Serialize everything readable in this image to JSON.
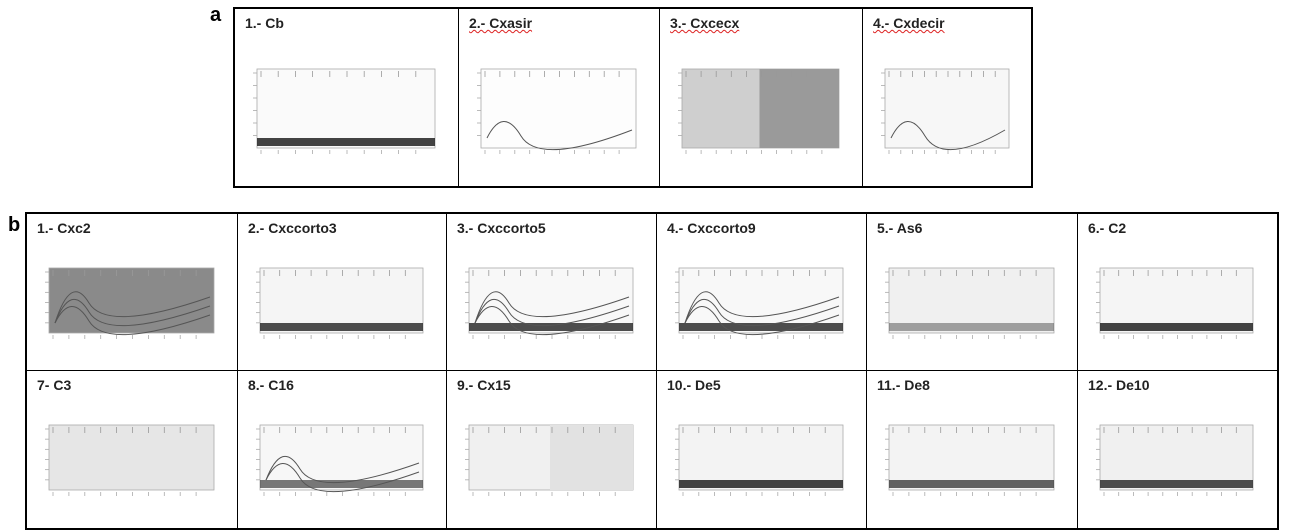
{
  "panel_a": {
    "label": "a",
    "titles": [
      "1.- Cb",
      "2.- Cxasir",
      "3.- Cxcecx",
      "4.- Cxdecir"
    ]
  },
  "panel_b": {
    "label": "b",
    "titles": [
      "1.- Cxc2",
      "2.- Cxccorto3",
      "3.- Cxccorto5",
      "4.- Cxccorto9",
      "5.- As6",
      "6.- C2",
      "7- C3",
      "8.- C16",
      "9.- Cx15",
      "10.- De5",
      "11.- De8",
      "12.- De10"
    ]
  }
}
